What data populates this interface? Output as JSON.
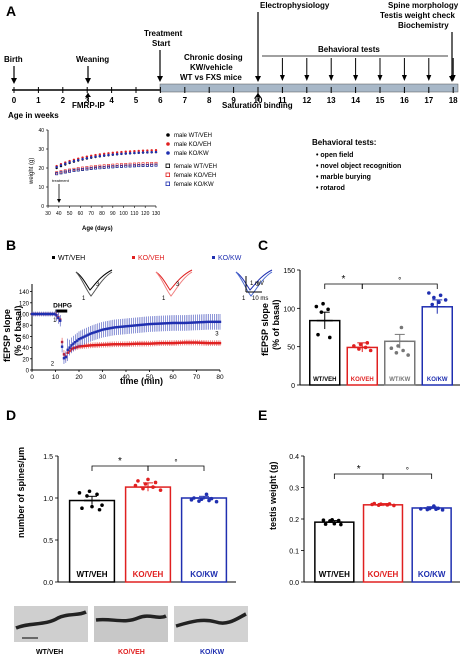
{
  "panel_labels": {
    "a": "A",
    "b": "B",
    "c": "C",
    "d": "D",
    "e": "E"
  },
  "colors": {
    "wt_veh": "#000000",
    "ko_veh": "#e02020",
    "wt_kw": "#777777",
    "ko_kw": "#1f2fb0",
    "timeline_bar": "#a8b8c8"
  },
  "timeline": {
    "weeks": [
      "0",
      "1",
      "2",
      "3",
      "4",
      "5",
      "6",
      "7",
      "8",
      "9",
      "10",
      "11",
      "12",
      "13",
      "14",
      "15",
      "16",
      "17",
      "18"
    ],
    "axis_label": "Age in weeks",
    "events": {
      "birth": "Birth",
      "weaning": "Weaning",
      "treatment": "Treatment\nStart",
      "electrophysiology": "Electrophysiology",
      "spine": "Spine morphology",
      "testis": "Testis weight check",
      "biochemistry": "Biochemistry",
      "chronic1": "Chronic dosing",
      "chronic2": "KW/vehicle",
      "chronic3": "WT vs FXS mice",
      "behavioral": "Behavioral tests",
      "fmrp_ip": "FMRP-IP",
      "saturation": "Saturation binding"
    },
    "behavioral_list": {
      "title": "Behavioral tests:",
      "items": [
        "open field",
        "novel object recognition",
        "marble burying",
        "rotarod"
      ]
    }
  },
  "weight_chart": {
    "ylabel": "weight (g)",
    "xlabel": "Age (days)",
    "xticks": [
      "30",
      "40",
      "50",
      "60",
      "70",
      "80",
      "90",
      "100",
      "110",
      "120",
      "130"
    ],
    "yticks": [
      "0",
      "10",
      "20",
      "30",
      "40"
    ],
    "treatment_label": "treatment",
    "legend": [
      "male WT/VEH",
      "male KO/VEH",
      "male KO/KW",
      "female WT/VEH",
      "female KO/VEH",
      "female KO/KW"
    ]
  },
  "chart_data": [
    {
      "type": "line",
      "panel": "B",
      "xlabel": "time (min)",
      "ylabel": "fEPSP slope\n(% of basal)",
      "xlim": [
        0,
        80
      ],
      "ylim": [
        0,
        150
      ],
      "xticks": [
        "0",
        "10",
        "20",
        "30",
        "40",
        "50",
        "60",
        "70",
        "80"
      ],
      "yticks": [
        "0",
        "20",
        "40",
        "60",
        "80",
        "100",
        "120",
        "140"
      ],
      "stim_label": "DHPG",
      "markers": [
        "1",
        "2",
        "3"
      ],
      "legend": [
        "WT/VEH",
        "KO/VEH",
        "KO/KW"
      ],
      "trace_scale": {
        "mv": "1 mV",
        "ms": "10 ms"
      },
      "series": [
        {
          "name": "KO/VEH",
          "x": [
            0,
            5,
            10,
            12,
            13,
            14,
            15,
            17,
            20,
            25,
            30,
            35,
            40,
            45,
            50,
            55,
            60,
            65,
            70,
            75,
            80
          ],
          "values": [
            100,
            100,
            100,
            90,
            40,
            20,
            30,
            38,
            42,
            44,
            45,
            46,
            46,
            47,
            47,
            48,
            48,
            49,
            49,
            48,
            48
          ]
        },
        {
          "name": "KO/KW",
          "x": [
            0,
            5,
            10,
            12,
            13,
            14,
            15,
            17,
            20,
            25,
            30,
            35,
            40,
            45,
            50,
            55,
            60,
            65,
            70,
            75,
            80
          ],
          "values": [
            100,
            100,
            100,
            88,
            30,
            15,
            35,
            45,
            55,
            65,
            72,
            76,
            78,
            80,
            82,
            83,
            84,
            84,
            85,
            86,
            86
          ]
        }
      ]
    },
    {
      "type": "bar",
      "panel": "C",
      "ylabel": "fEPSP slope\n(% of basal)",
      "categories": [
        "WT/VEH",
        "KO/VEH",
        "WT/KW",
        "KO/KW"
      ],
      "values": [
        84,
        49,
        57,
        102
      ],
      "errors": [
        11,
        6,
        9,
        9
      ],
      "ylim": [
        0,
        150
      ],
      "yticks": [
        "0",
        "50",
        "100",
        "150"
      ],
      "significance": [
        "*",
        "°"
      ]
    },
    {
      "type": "bar",
      "panel": "D",
      "ylabel": "number of spines/μm",
      "categories": [
        "WT/VEH",
        "KO/VEH",
        "KO/KW"
      ],
      "values": [
        0.97,
        1.13,
        1.0
      ],
      "errors": [
        0.05,
        0.05,
        0.02
      ],
      "ylim": [
        0,
        1.5
      ],
      "yticks": [
        "0.0",
        "0.5",
        "1.0",
        "1.5"
      ],
      "significance": [
        "*",
        "°"
      ]
    },
    {
      "type": "bar",
      "panel": "E",
      "ylabel": "testis weight (g)",
      "categories": [
        "WT/VEH",
        "KO/VEH",
        "KO/KW"
      ],
      "values": [
        0.19,
        0.245,
        0.235
      ],
      "errors": [
        0.005,
        0.004,
        0.004
      ],
      "ylim": [
        0,
        0.4
      ],
      "yticks": [
        "0.0",
        "0.1",
        "0.2",
        "0.3",
        "0.4"
      ],
      "significance": [
        "*",
        "°"
      ]
    }
  ],
  "micrograph_labels": [
    "WT/VEH",
    "KO/VEH",
    "KO/KW"
  ]
}
